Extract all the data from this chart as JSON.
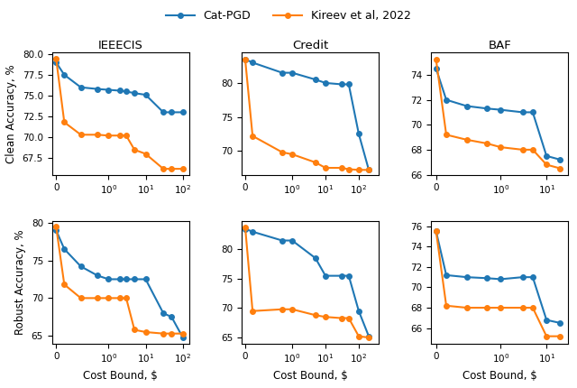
{
  "col_titles": [
    "IEEECIS",
    "Credit",
    "BAF"
  ],
  "row_titles": [
    "Clean Accuracy, %",
    "Robust Accuracy, %"
  ],
  "xlabel": "Cost Bound, $",
  "legend_labels": [
    "Cat-PGD",
    "Kireev et al, 2022"
  ],
  "line_colors": [
    "#1f77b4",
    "#ff7f0e"
  ],
  "marker": "o",
  "markersize": 4,
  "linewidth": 1.5,
  "x_ieeecis": [
    0.0,
    0.1,
    0.3,
    0.5,
    1.0,
    2.0,
    3.0,
    5.0,
    10.0,
    30.0,
    50.0,
    100.0
  ],
  "x_credit": [
    0.0,
    0.1,
    0.5,
    1.0,
    5.0,
    10.0,
    30.0,
    50.0,
    100.0,
    200.0
  ],
  "x_baf": [
    0.0,
    0.1,
    0.3,
    0.5,
    1.0,
    3.0,
    5.0,
    10.0,
    20.0
  ],
  "clean_ieeecis_blue": [
    79.0,
    77.5,
    76.0,
    75.8,
    75.7,
    75.6,
    75.5,
    75.3,
    75.1,
    73.0,
    73.0,
    73.0
  ],
  "clean_ieeecis_orange": [
    79.5,
    71.8,
    70.3,
    70.3,
    70.2,
    70.2,
    70.2,
    68.5,
    68.0,
    66.2,
    66.2,
    66.2
  ],
  "clean_credit_blue": [
    83.5,
    83.0,
    81.5,
    81.5,
    80.5,
    80.0,
    79.8,
    79.8,
    72.5,
    67.2
  ],
  "clean_credit_orange": [
    83.5,
    72.2,
    69.8,
    69.5,
    68.3,
    67.5,
    67.5,
    67.3,
    67.2,
    67.2
  ],
  "clean_baf_blue": [
    74.5,
    72.0,
    71.5,
    71.3,
    71.2,
    71.0,
    71.0,
    67.5,
    67.2
  ],
  "clean_baf_orange": [
    75.2,
    69.2,
    68.8,
    68.5,
    68.2,
    68.0,
    68.0,
    66.8,
    66.5
  ],
  "robust_ieeecis_blue": [
    79.0,
    76.5,
    74.2,
    73.0,
    72.5,
    72.5,
    72.5,
    72.5,
    72.5,
    68.0,
    67.5,
    64.8
  ],
  "robust_ieeecis_orange": [
    79.5,
    71.8,
    70.0,
    70.0,
    70.0,
    70.0,
    70.0,
    65.8,
    65.5,
    65.3,
    65.3,
    65.3
  ],
  "robust_credit_blue": [
    83.5,
    83.0,
    81.5,
    81.5,
    78.5,
    75.5,
    75.5,
    75.5,
    69.5,
    65.2
  ],
  "robust_credit_orange": [
    83.8,
    69.5,
    69.8,
    69.8,
    68.8,
    68.5,
    68.3,
    68.3,
    65.2,
    65.0
  ],
  "robust_baf_blue": [
    75.5,
    71.2,
    71.0,
    70.9,
    70.8,
    71.0,
    71.0,
    66.8,
    66.5
  ],
  "robust_baf_orange": [
    75.5,
    68.2,
    68.0,
    68.0,
    68.0,
    68.0,
    68.0,
    65.2,
    65.2
  ]
}
